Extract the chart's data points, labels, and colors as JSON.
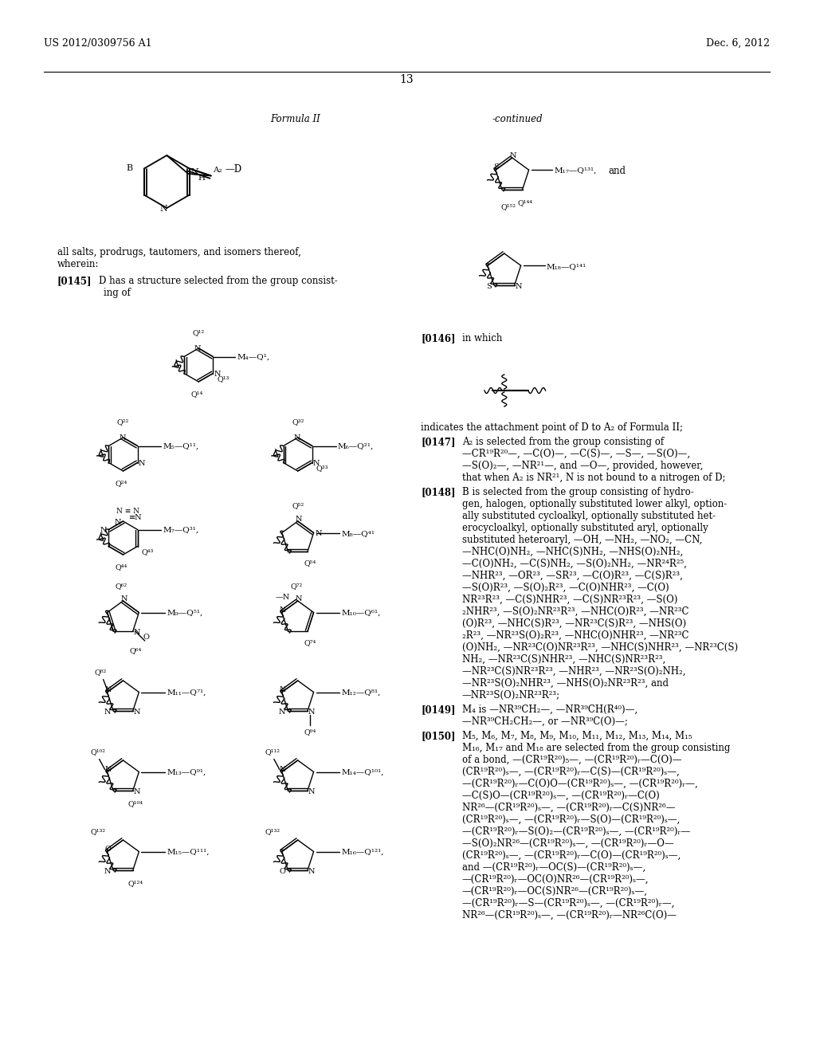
{
  "bg": "#ffffff",
  "fc": "#000000",
  "header_left": "US 2012/0309756 A1",
  "header_right": "Dec. 6, 2012",
  "page_num": "13"
}
